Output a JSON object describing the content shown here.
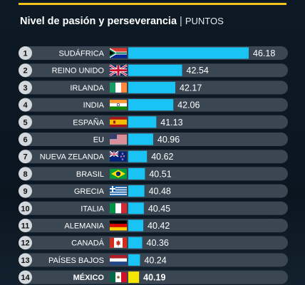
{
  "header": {
    "title": "Nivel de pasión y perseverancia",
    "separator": "|",
    "units": "PUNTOS"
  },
  "colors": {
    "bar": "#19c4f5",
    "highlight_bar": "#f4e600",
    "row_bg": "#3a4753",
    "rank_circle": "#d3d8dc",
    "accent_rule": "#f0c419"
  },
  "chart_data": {
    "type": "bar",
    "orientation": "horizontal",
    "title": "Nivel de pasión y perseverancia",
    "units": "PUNTOS",
    "ranks": [
      "1",
      "2",
      "3",
      "4",
      "5",
      "6",
      "7",
      "8",
      "9",
      "10",
      "11",
      "12",
      "13",
      "14"
    ],
    "categories": [
      "SUDÁFRICA",
      "REINO UNIDO",
      "IRLANDA",
      "INDIA",
      "ESPAÑA",
      "EU",
      "NUEVA ZELANDA",
      "BRASIL",
      "GRECIA",
      "ITALIA",
      "ALEMANIA",
      "CANADÁ",
      "PAÍSES BAJOS",
      "MÉXICO"
    ],
    "values": [
      46.18,
      42.54,
      42.17,
      42.06,
      41.13,
      40.96,
      40.62,
      40.51,
      40.48,
      40.45,
      40.42,
      40.36,
      40.24,
      40.19
    ],
    "value_labels": [
      "46.18",
      "42.54",
      "42.17",
      "42.06",
      "41.13",
      "40.96",
      "40.62",
      "40.51",
      "40.48",
      "40.45",
      "40.42",
      "40.36",
      "40.24",
      "40.19"
    ],
    "flags": [
      "flag-south-africa-icon",
      "flag-united-kingdom-icon",
      "flag-ireland-icon",
      "flag-india-icon",
      "flag-spain-icon",
      "flag-usa-icon",
      "flag-new-zealand-icon",
      "flag-brazil-icon",
      "flag-greece-icon",
      "flag-italy-icon",
      "flag-germany-icon",
      "flag-canada-icon",
      "flag-netherlands-icon",
      "flag-mexico-icon"
    ],
    "highlight": "MÉXICO"
  }
}
